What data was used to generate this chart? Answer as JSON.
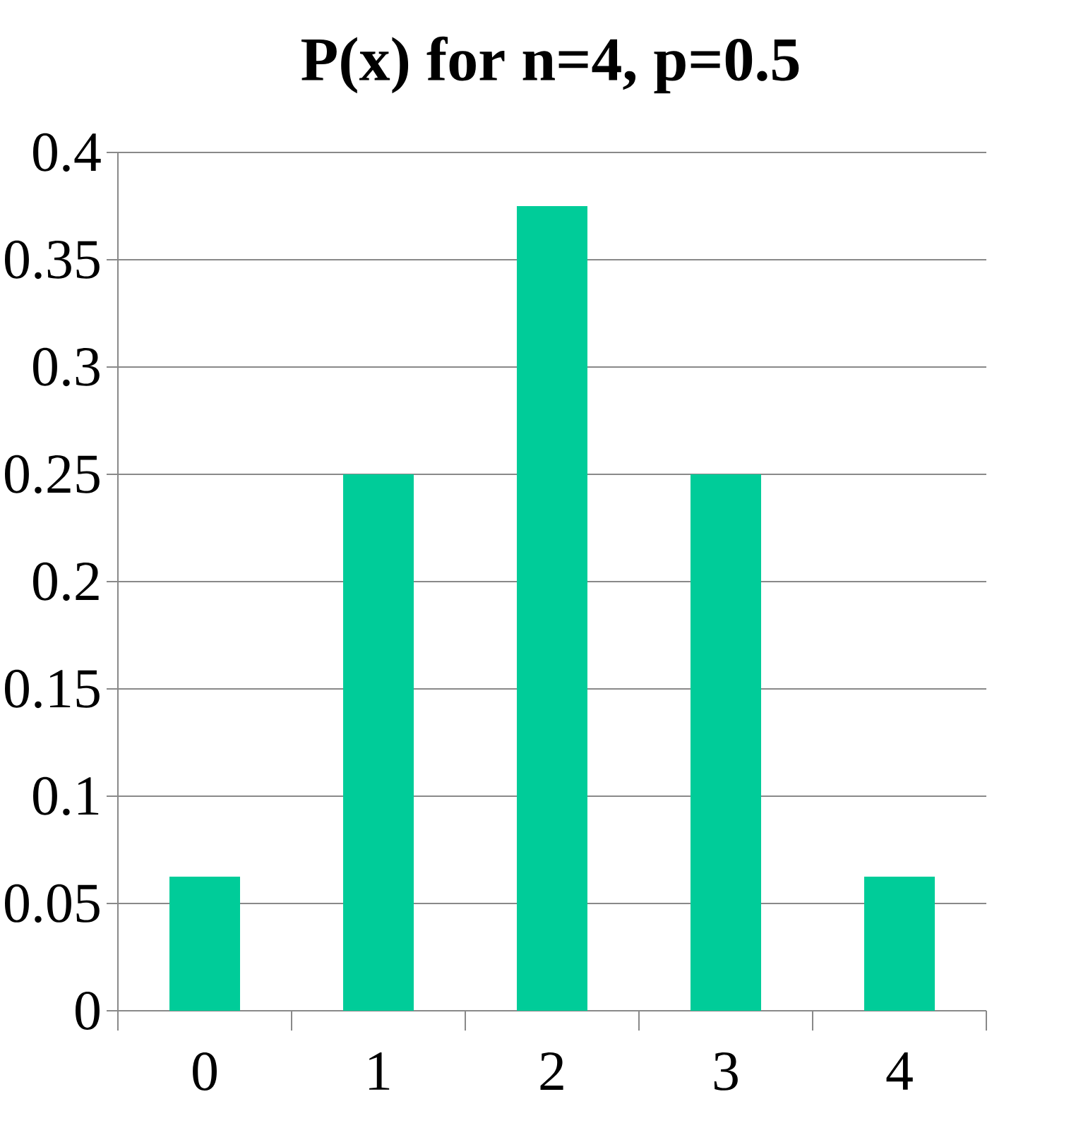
{
  "chart_data": {
    "type": "bar",
    "title": "P(x) for n=4, p=0.5",
    "categories": [
      "0",
      "1",
      "2",
      "3",
      "4"
    ],
    "values": [
      0.0625,
      0.25,
      0.375,
      0.25,
      0.0625
    ],
    "color": "#00cc99",
    "ylim": [
      0,
      0.4
    ],
    "yticks": [
      0,
      0.05,
      0.1,
      0.15,
      0.2,
      0.25,
      0.3,
      0.35,
      0.4
    ],
    "grid": "y"
  }
}
